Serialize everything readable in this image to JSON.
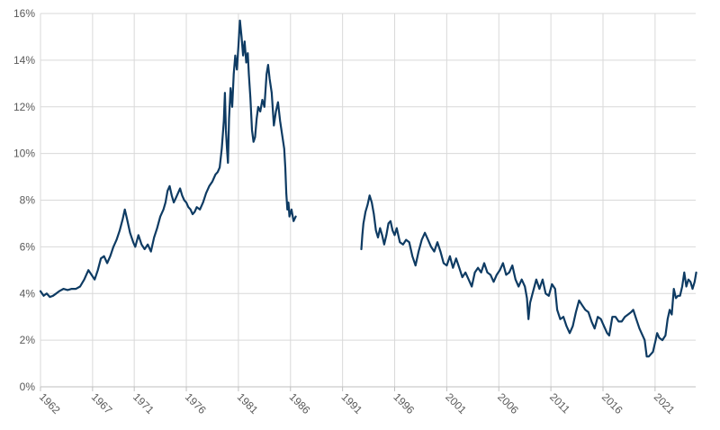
{
  "chart_data": {
    "type": "line",
    "title": "",
    "xlabel": "",
    "ylabel": "",
    "x_tick_labels": [
      "1962",
      "1967",
      "1971",
      "1976",
      "1981",
      "1986",
      "1991",
      "1996",
      "2001",
      "2006",
      "2011",
      "2016",
      "2021"
    ],
    "y_tick_labels": [
      "0%",
      "2%",
      "4%",
      "6%",
      "8%",
      "10%",
      "12%",
      "14%",
      "16%"
    ],
    "ylim": [
      0,
      16
    ],
    "xlim": [
      1962,
      2024.9
    ],
    "grid": true,
    "legend": "none",
    "colors": {
      "series": "#0e3b63",
      "grid": "#d9d9d9",
      "axis": "#bfbfbf",
      "text": "#595959"
    },
    "series": [
      {
        "segments": [
          [
            [
              1962.0,
              4.1
            ],
            [
              1962.3,
              3.9
            ],
            [
              1962.6,
              4.0
            ],
            [
              1962.9,
              3.85
            ],
            [
              1963.2,
              3.9
            ],
            [
              1963.5,
              4.0
            ],
            [
              1963.8,
              4.1
            ],
            [
              1964.2,
              4.2
            ],
            [
              1964.6,
              4.15
            ],
            [
              1965.0,
              4.2
            ],
            [
              1965.4,
              4.2
            ],
            [
              1965.8,
              4.3
            ],
            [
              1966.2,
              4.6
            ],
            [
              1966.6,
              5.0
            ],
            [
              1966.9,
              4.8
            ],
            [
              1967.2,
              4.6
            ],
            [
              1967.5,
              5.0
            ],
            [
              1967.8,
              5.5
            ],
            [
              1968.1,
              5.6
            ],
            [
              1968.4,
              5.3
            ],
            [
              1968.7,
              5.6
            ],
            [
              1969.0,
              6.0
            ],
            [
              1969.3,
              6.3
            ],
            [
              1969.6,
              6.7
            ],
            [
              1969.9,
              7.2
            ],
            [
              1970.1,
              7.6
            ],
            [
              1970.3,
              7.2
            ],
            [
              1970.6,
              6.6
            ],
            [
              1970.9,
              6.2
            ],
            [
              1971.1,
              6.0
            ],
            [
              1971.4,
              6.5
            ],
            [
              1971.7,
              6.1
            ],
            [
              1972.0,
              5.9
            ],
            [
              1972.3,
              6.1
            ],
            [
              1972.6,
              5.8
            ],
            [
              1972.9,
              6.4
            ],
            [
              1973.2,
              6.8
            ],
            [
              1973.5,
              7.3
            ],
            [
              1973.8,
              7.6
            ],
            [
              1974.0,
              7.9
            ],
            [
              1974.2,
              8.4
            ],
            [
              1974.4,
              8.6
            ],
            [
              1974.6,
              8.2
            ],
            [
              1974.8,
              7.9
            ],
            [
              1975.0,
              8.1
            ],
            [
              1975.2,
              8.3
            ],
            [
              1975.4,
              8.5
            ],
            [
              1975.6,
              8.2
            ],
            [
              1975.8,
              8.0
            ],
            [
              1976.0,
              7.9
            ],
            [
              1976.2,
              7.7
            ],
            [
              1976.4,
              7.6
            ],
            [
              1976.6,
              7.4
            ],
            [
              1976.8,
              7.5
            ],
            [
              1977.0,
              7.7
            ],
            [
              1977.3,
              7.6
            ],
            [
              1977.6,
              7.9
            ],
            [
              1977.9,
              8.3
            ],
            [
              1978.2,
              8.6
            ],
            [
              1978.5,
              8.8
            ],
            [
              1978.8,
              9.1
            ],
            [
              1979.0,
              9.2
            ],
            [
              1979.2,
              9.4
            ],
            [
              1979.4,
              10.2
            ],
            [
              1979.6,
              11.4
            ],
            [
              1979.7,
              12.6
            ],
            [
              1979.8,
              11.0
            ],
            [
              1979.9,
              10.2
            ],
            [
              1980.0,
              9.6
            ],
            [
              1980.1,
              11.5
            ],
            [
              1980.25,
              12.8
            ],
            [
              1980.4,
              12.0
            ],
            [
              1980.55,
              13.4
            ],
            [
              1980.7,
              14.2
            ],
            [
              1980.85,
              13.6
            ],
            [
              1981.0,
              14.6
            ],
            [
              1981.15,
              15.7
            ],
            [
              1981.3,
              15.0
            ],
            [
              1981.45,
              14.2
            ],
            [
              1981.6,
              14.8
            ],
            [
              1981.75,
              13.9
            ],
            [
              1981.9,
              14.3
            ],
            [
              1982.0,
              13.4
            ],
            [
              1982.15,
              12.4
            ],
            [
              1982.3,
              11.0
            ],
            [
              1982.45,
              10.5
            ],
            [
              1982.6,
              10.7
            ],
            [
              1982.75,
              11.5
            ],
            [
              1982.9,
              12.0
            ],
            [
              1983.1,
              11.8
            ],
            [
              1983.3,
              12.3
            ],
            [
              1983.5,
              12.0
            ],
            [
              1983.7,
              13.4
            ],
            [
              1983.85,
              13.8
            ],
            [
              1984.0,
              13.2
            ],
            [
              1984.2,
              12.6
            ],
            [
              1984.4,
              11.2
            ],
            [
              1984.6,
              11.8
            ],
            [
              1984.8,
              12.2
            ],
            [
              1985.0,
              11.4
            ],
            [
              1985.2,
              10.8
            ],
            [
              1985.4,
              10.2
            ],
            [
              1985.5,
              9.4
            ],
            [
              1985.6,
              8.3
            ],
            [
              1985.7,
              7.6
            ],
            [
              1985.8,
              7.9
            ],
            [
              1985.9,
              7.3
            ],
            [
              1986.1,
              7.6
            ],
            [
              1986.3,
              7.1
            ],
            [
              1986.5,
              7.3
            ]
          ],
          [
            [
              1992.8,
              5.9
            ],
            [
              1992.9,
              6.5
            ],
            [
              1993.0,
              7.0
            ],
            [
              1993.2,
              7.5
            ],
            [
              1993.4,
              7.8
            ],
            [
              1993.6,
              8.2
            ],
            [
              1993.8,
              7.9
            ],
            [
              1994.0,
              7.4
            ],
            [
              1994.2,
              6.7
            ],
            [
              1994.4,
              6.4
            ],
            [
              1994.6,
              6.8
            ],
            [
              1994.8,
              6.5
            ],
            [
              1995.0,
              6.1
            ],
            [
              1995.2,
              6.5
            ],
            [
              1995.4,
              7.0
            ],
            [
              1995.6,
              7.1
            ],
            [
              1995.8,
              6.7
            ],
            [
              1996.0,
              6.5
            ],
            [
              1996.2,
              6.8
            ],
            [
              1996.5,
              6.2
            ],
            [
              1996.8,
              6.1
            ],
            [
              1997.1,
              6.3
            ],
            [
              1997.4,
              6.2
            ],
            [
              1997.7,
              5.6
            ],
            [
              1998.0,
              5.2
            ],
            [
              1998.3,
              5.8
            ],
            [
              1998.6,
              6.3
            ],
            [
              1998.9,
              6.6
            ],
            [
              1999.2,
              6.3
            ],
            [
              1999.5,
              6.0
            ],
            [
              1999.8,
              5.8
            ],
            [
              2000.1,
              6.2
            ],
            [
              2000.4,
              5.8
            ],
            [
              2000.7,
              5.3
            ],
            [
              2001.0,
              5.2
            ],
            [
              2001.3,
              5.6
            ],
            [
              2001.6,
              5.1
            ],
            [
              2001.9,
              5.5
            ],
            [
              2002.2,
              5.1
            ],
            [
              2002.5,
              4.7
            ],
            [
              2002.8,
              4.9
            ],
            [
              2003.1,
              4.6
            ],
            [
              2003.4,
              4.3
            ],
            [
              2003.7,
              4.9
            ],
            [
              2004.0,
              5.1
            ],
            [
              2004.3,
              4.9
            ],
            [
              2004.6,
              5.3
            ],
            [
              2004.9,
              4.9
            ],
            [
              2005.2,
              4.8
            ],
            [
              2005.5,
              4.5
            ],
            [
              2005.8,
              4.8
            ],
            [
              2006.1,
              5.0
            ],
            [
              2006.4,
              5.3
            ],
            [
              2006.7,
              4.8
            ],
            [
              2007.0,
              4.9
            ],
            [
              2007.3,
              5.2
            ],
            [
              2007.6,
              4.6
            ],
            [
              2007.9,
              4.3
            ],
            [
              2008.2,
              4.6
            ],
            [
              2008.5,
              4.3
            ],
            [
              2008.7,
              3.8
            ],
            [
              2008.85,
              2.9
            ],
            [
              2009.0,
              3.6
            ],
            [
              2009.3,
              4.1
            ],
            [
              2009.6,
              4.6
            ],
            [
              2009.9,
              4.2
            ],
            [
              2010.2,
              4.6
            ],
            [
              2010.5,
              4.0
            ],
            [
              2010.8,
              3.9
            ],
            [
              2011.1,
              4.4
            ],
            [
              2011.4,
              4.2
            ],
            [
              2011.6,
              3.3
            ],
            [
              2011.9,
              2.9
            ],
            [
              2012.2,
              3.0
            ],
            [
              2012.5,
              2.6
            ],
            [
              2012.8,
              2.3
            ],
            [
              2013.1,
              2.6
            ],
            [
              2013.4,
              3.2
            ],
            [
              2013.7,
              3.7
            ],
            [
              2014.0,
              3.5
            ],
            [
              2014.3,
              3.3
            ],
            [
              2014.6,
              3.2
            ],
            [
              2014.9,
              2.8
            ],
            [
              2015.2,
              2.5
            ],
            [
              2015.5,
              3.0
            ],
            [
              2015.8,
              2.9
            ],
            [
              2016.1,
              2.6
            ],
            [
              2016.4,
              2.3
            ],
            [
              2016.6,
              2.2
            ],
            [
              2016.9,
              3.0
            ],
            [
              2017.2,
              3.0
            ],
            [
              2017.5,
              2.8
            ],
            [
              2017.8,
              2.8
            ],
            [
              2018.1,
              3.0
            ],
            [
              2018.4,
              3.1
            ],
            [
              2018.7,
              3.2
            ],
            [
              2018.9,
              3.3
            ],
            [
              2019.2,
              2.9
            ],
            [
              2019.5,
              2.5
            ],
            [
              2019.8,
              2.2
            ],
            [
              2020.0,
              2.0
            ],
            [
              2020.2,
              1.3
            ],
            [
              2020.4,
              1.3
            ],
            [
              2020.6,
              1.4
            ],
            [
              2020.8,
              1.5
            ],
            [
              2021.0,
              1.9
            ],
            [
              2021.2,
              2.3
            ],
            [
              2021.4,
              2.1
            ],
            [
              2021.7,
              2.0
            ],
            [
              2022.0,
              2.2
            ],
            [
              2022.2,
              2.9
            ],
            [
              2022.4,
              3.3
            ],
            [
              2022.6,
              3.1
            ],
            [
              2022.8,
              4.2
            ],
            [
              2023.0,
              3.8
            ],
            [
              2023.2,
              3.9
            ],
            [
              2023.4,
              3.9
            ],
            [
              2023.6,
              4.3
            ],
            [
              2023.8,
              4.9
            ],
            [
              2024.0,
              4.3
            ],
            [
              2024.2,
              4.6
            ],
            [
              2024.4,
              4.5
            ],
            [
              2024.6,
              4.2
            ],
            [
              2024.8,
              4.5
            ],
            [
              2024.95,
              4.9
            ]
          ]
        ]
      }
    ]
  }
}
